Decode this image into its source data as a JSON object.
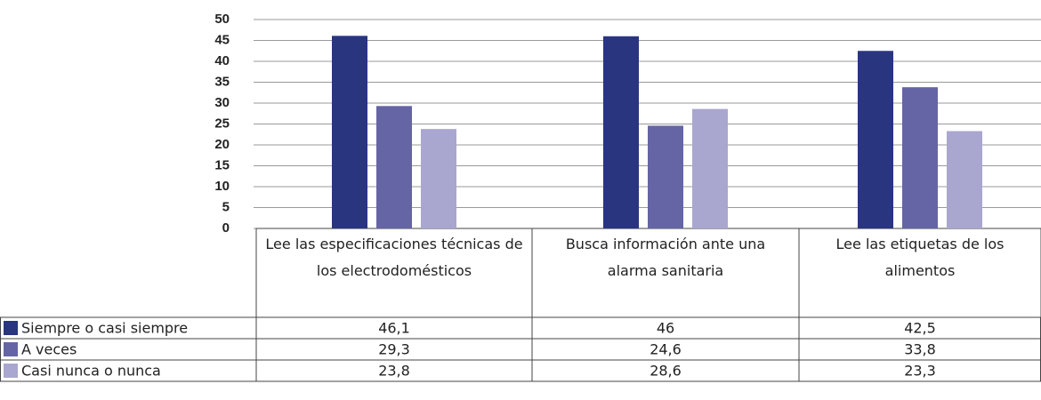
{
  "chart_data": {
    "type": "bar",
    "categories": [
      "Lee las especificaciones técnicas de los electrodomésticos",
      "Busca información ante una alarma sanitaria",
      "Lee las etiquetas de los alimentos"
    ],
    "series": [
      {
        "name": "Siempre o casi siempre",
        "color": "#2a3580",
        "values": [
          46.1,
          46,
          42.5
        ],
        "value_labels": [
          "46,1",
          "46",
          "42,5"
        ]
      },
      {
        "name": "A veces",
        "color": "#6565a5",
        "values": [
          29.3,
          24.6,
          33.8
        ],
        "value_labels": [
          "29,3",
          "24,6",
          "33,8"
        ]
      },
      {
        "name": "Casi nunca o nunca",
        "color": "#a9a6cf",
        "values": [
          23.8,
          28.6,
          23.3
        ],
        "value_labels": [
          "23,8",
          "28,6",
          "23,3"
        ]
      }
    ],
    "ylim": [
      0,
      50
    ],
    "yticks": [
      0,
      5,
      10,
      15,
      20,
      25,
      30,
      35,
      40,
      45,
      50
    ],
    "grid": true
  }
}
